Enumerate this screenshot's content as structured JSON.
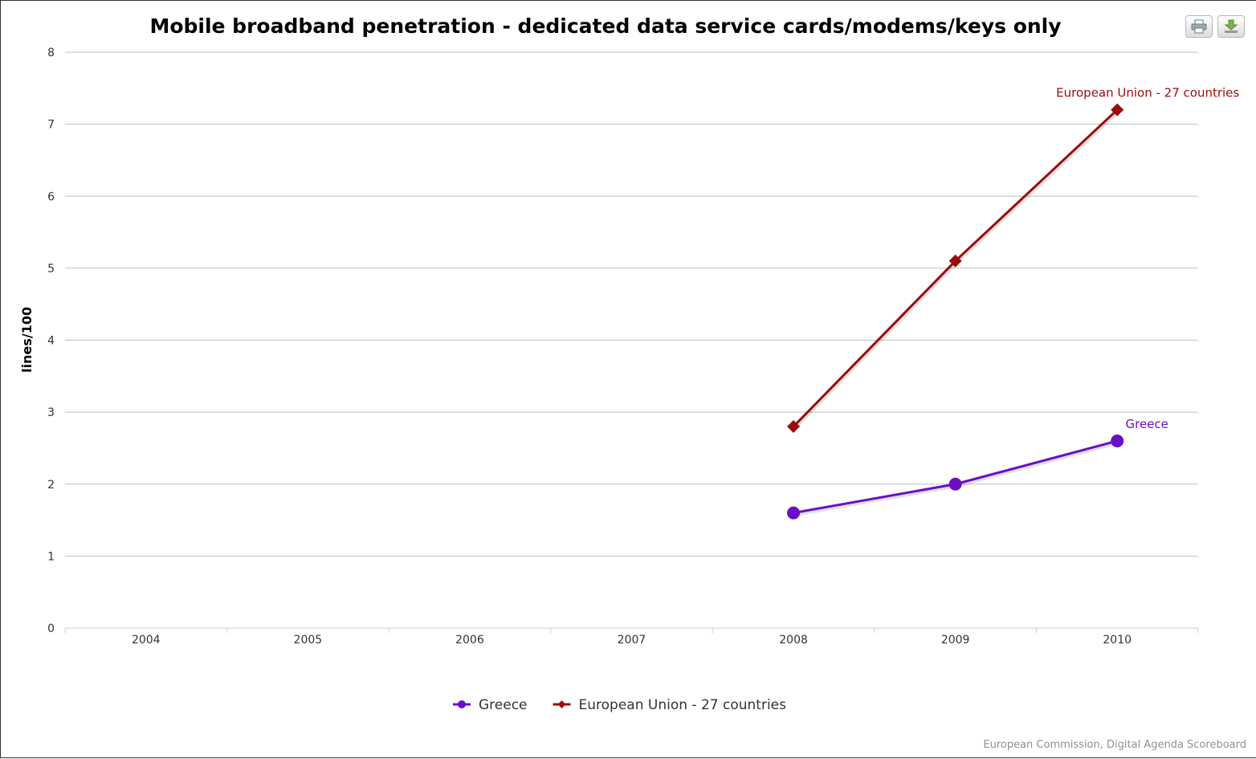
{
  "chart_data": {
    "type": "line",
    "title": "Mobile broadband penetration - dedicated data service cards/modems/keys only",
    "xlabel": "",
    "ylabel": "lines/100",
    "categories": [
      "2004",
      "2005",
      "2006",
      "2007",
      "2008",
      "2009",
      "2010"
    ],
    "ylim": [
      0,
      8
    ],
    "yticks": [
      "0",
      "1",
      "2",
      "3",
      "4",
      "5",
      "6",
      "7",
      "8"
    ],
    "grid": true,
    "legend": "bottom-center",
    "series": [
      {
        "name": "Greece",
        "label": "Greece",
        "color": "#6b0fc5",
        "marker": "circle",
        "values": [
          null,
          null,
          null,
          null,
          1.6,
          2.0,
          2.6
        ]
      },
      {
        "name": "European Union - 27 countries",
        "label": "European Union - 27 countries",
        "color": "#990c0c",
        "marker": "diamond",
        "values": [
          null,
          null,
          null,
          null,
          2.8,
          5.1,
          7.2
        ]
      }
    ]
  },
  "toolbar": {
    "print_icon": "printer-icon",
    "export_icon": "download-icon"
  },
  "credits": "European Commission, Digital Agenda Scoreboard"
}
